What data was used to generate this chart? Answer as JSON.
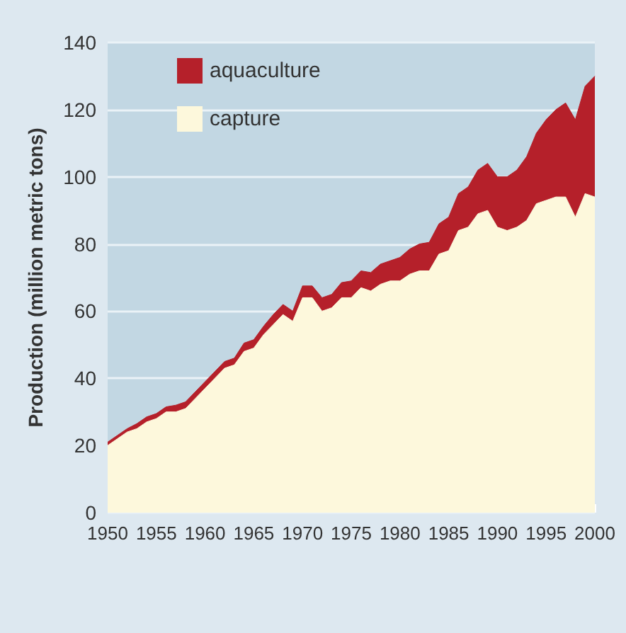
{
  "chart_data": {
    "type": "area",
    "stacked": true,
    "ylabel": "Production (million metric tons)",
    "x": [
      1950,
      1951,
      1952,
      1953,
      1954,
      1955,
      1956,
      1957,
      1958,
      1959,
      1960,
      1961,
      1962,
      1963,
      1964,
      1965,
      1966,
      1967,
      1968,
      1969,
      1970,
      1971,
      1972,
      1973,
      1974,
      1975,
      1976,
      1977,
      1978,
      1979,
      1980,
      1981,
      1982,
      1983,
      1984,
      1985,
      1986,
      1987,
      1988,
      1989,
      1990,
      1991,
      1992,
      1993,
      1994,
      1995,
      1996,
      1997,
      1998,
      1999,
      2000
    ],
    "series": [
      {
        "name": "capture",
        "color": "#fdf8dc",
        "values": [
          20,
          22,
          24,
          25,
          27,
          28,
          30,
          30,
          31,
          34,
          37,
          40,
          43,
          44,
          48,
          49,
          53,
          56,
          59,
          57,
          64,
          64,
          60,
          61,
          64,
          64,
          67,
          66,
          68,
          69,
          69,
          71,
          72,
          72,
          77,
          78,
          84,
          85,
          89,
          90,
          85,
          84,
          85,
          87,
          92,
          93,
          94,
          94,
          88,
          95,
          94
        ]
      },
      {
        "name": "aquaculture",
        "color": "#b5202a",
        "values": [
          1,
          1,
          1,
          1.5,
          1.5,
          1.5,
          1.5,
          2,
          2,
          2,
          2,
          2,
          2,
          2,
          2.5,
          2.5,
          2.5,
          3,
          3,
          3,
          3.5,
          3.5,
          4,
          4,
          4.5,
          5,
          5,
          5.5,
          6,
          6,
          7,
          7.5,
          8,
          8.5,
          9,
          10,
          11,
          12,
          13,
          14,
          15,
          16,
          17,
          19,
          21,
          24,
          26,
          28,
          29,
          32,
          36
        ]
      }
    ],
    "xlim": [
      1950,
      2000
    ],
    "xticks": [
      1950,
      1955,
      1960,
      1965,
      1970,
      1975,
      1980,
      1985,
      1990,
      1995,
      2000
    ],
    "ylim": [
      0,
      140
    ],
    "yticks": [
      0,
      20,
      40,
      60,
      80,
      100,
      120,
      140
    ],
    "grid": "y",
    "legend": "top left"
  }
}
